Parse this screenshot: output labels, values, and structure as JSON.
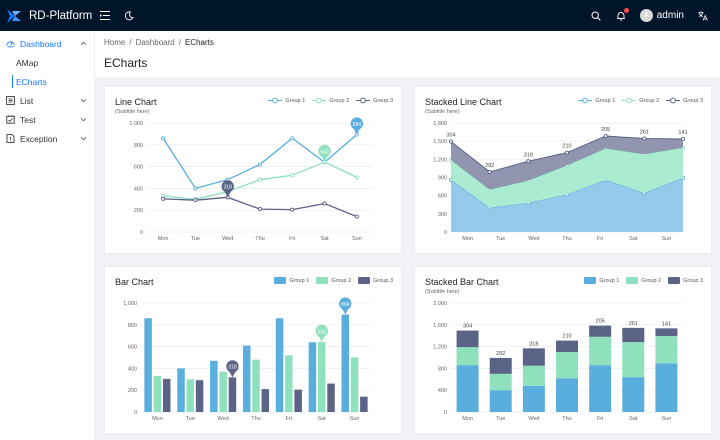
{
  "app": {
    "title": "RD-Platform"
  },
  "header": {
    "username": "admin",
    "avatar_letter": "A"
  },
  "sidebar": {
    "items": [
      {
        "label": "Dashboard",
        "icon": "dashboard-icon"
      },
      {
        "label": "AMap"
      },
      {
        "label": "ECharts"
      },
      {
        "label": "List",
        "icon": "list-icon"
      },
      {
        "label": "Test",
        "icon": "test-icon"
      },
      {
        "label": "Exception",
        "icon": "exception-icon"
      }
    ]
  },
  "breadcrumb": [
    "Home",
    "Dashboard",
    "ECharts"
  ],
  "page_title": "ECharts",
  "colors": {
    "group1": "#5aaede",
    "group2": "#8fe0bd",
    "group3": "#5b6386",
    "accent": "#1677ff",
    "topbar": "#001529"
  },
  "chart_data": [
    {
      "type": "line",
      "title": "Line Chart",
      "subtitle": "(Subtitle here)",
      "categories": [
        "Mon",
        "Tue",
        "Wed",
        "Thu",
        "Fri",
        "Sat",
        "Sun"
      ],
      "yticks": [
        0,
        200,
        400,
        600,
        800,
        "1,000"
      ],
      "ylim": [
        0,
        1000
      ],
      "series": [
        {
          "name": "Group 1",
          "values": [
            860,
            400,
            480,
            620,
            860,
            640,
            894
          ]
        },
        {
          "name": "Group 2",
          "values": [
            330,
            300,
            370,
            480,
            520,
            643,
            500
          ]
        },
        {
          "name": "Group 3",
          "values": [
            304,
            292,
            318,
            210,
            205,
            261,
            141
          ]
        }
      ],
      "markers": [
        {
          "series": 2,
          "index": 2,
          "label": "318"
        },
        {
          "series": 1,
          "index": 5,
          "label": "643"
        },
        {
          "series": 0,
          "index": 6,
          "label": "894"
        }
      ]
    },
    {
      "type": "area",
      "stacked": true,
      "title": "Stacked Line Chart",
      "subtitle": "(Subtitle here)",
      "categories": [
        "Mon",
        "Tue",
        "Wed",
        "Thu",
        "Fri",
        "Sat",
        "Sun"
      ],
      "yticks": [
        0,
        300,
        600,
        900,
        "1,200",
        "1,500",
        "1,800"
      ],
      "ylim": [
        0,
        1800
      ],
      "series": [
        {
          "name": "Group 1",
          "values": [
            860,
            400,
            480,
            620,
            860,
            640,
            894
          ]
        },
        {
          "name": "Group 2",
          "values": [
            330,
            300,
            370,
            480,
            520,
            643,
            500
          ]
        },
        {
          "name": "Group 3",
          "values": [
            304,
            292,
            318,
            210,
            205,
            261,
            141
          ]
        }
      ],
      "top_labels": [
        "304",
        "292",
        "318",
        "210",
        "205",
        "261",
        "141"
      ]
    },
    {
      "type": "bar",
      "title": "Bar Chart",
      "categories": [
        "Mon",
        "Tue",
        "Wed",
        "Thu",
        "Fri",
        "Sat",
        "Sun"
      ],
      "yticks": [
        0,
        200,
        400,
        600,
        800,
        "1,000"
      ],
      "ylim": [
        0,
        1000
      ],
      "series": [
        {
          "name": "Group 1",
          "values": [
            860,
            400,
            470,
            610,
            860,
            640,
            894
          ]
        },
        {
          "name": "Group 2",
          "values": [
            330,
            300,
            370,
            480,
            520,
            643,
            500
          ]
        },
        {
          "name": "Group 3",
          "values": [
            304,
            292,
            318,
            210,
            205,
            261,
            141
          ]
        }
      ],
      "markers": [
        {
          "series": 2,
          "index": 2,
          "label": "318"
        },
        {
          "series": 1,
          "index": 5,
          "label": "643"
        },
        {
          "series": 0,
          "index": 6,
          "label": "894"
        }
      ]
    },
    {
      "type": "bar",
      "stacked": true,
      "title": "Stacked Bar Chart",
      "subtitle": "(Subtitle here)",
      "categories": [
        "Mon",
        "Tue",
        "Wed",
        "Thu",
        "Fri",
        "Sat",
        "Sun"
      ],
      "yticks": [
        0,
        400,
        800,
        "1,200",
        "1,600",
        "2,000"
      ],
      "ylim": [
        0,
        2000
      ],
      "series": [
        {
          "name": "Group 1",
          "values": [
            860,
            400,
            480,
            620,
            860,
            640,
            894
          ]
        },
        {
          "name": "Group 2",
          "values": [
            330,
            300,
            370,
            480,
            520,
            643,
            500
          ]
        },
        {
          "name": "Group 3",
          "values": [
            304,
            292,
            318,
            210,
            205,
            261,
            141
          ]
        }
      ],
      "top_labels": [
        "304",
        "292",
        "318",
        "210",
        "205",
        "261",
        "141"
      ]
    }
  ]
}
